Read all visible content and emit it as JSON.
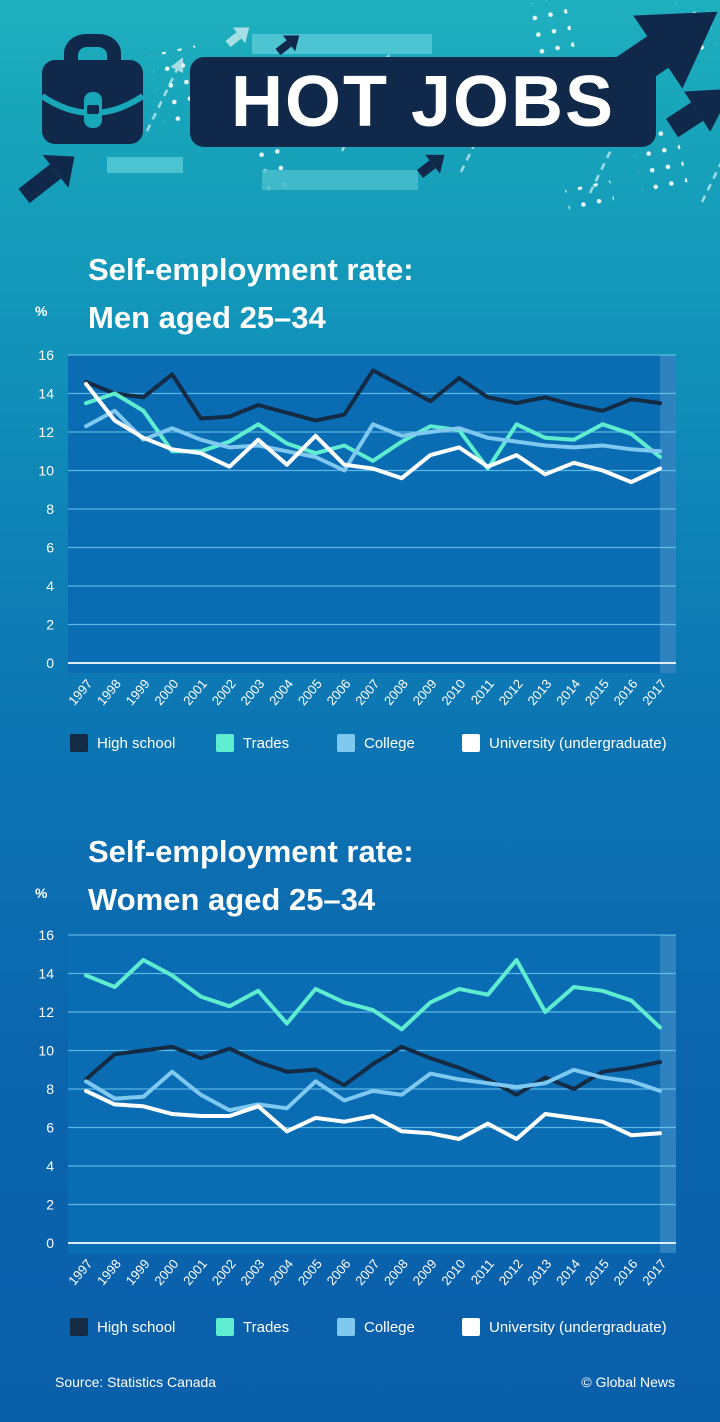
{
  "header": {
    "title": "HOT JOBS"
  },
  "colors": {
    "navy": "#10294a",
    "plot_bg": "#0a6db4",
    "grid": "rgba(125,214,242,0.7)",
    "axis": "rgba(240,250,255,0.9)",
    "strip_teal": "#52c6d3",
    "light_teal": "#a6dee5",
    "high_school": "#132b45",
    "trades": "#5fedd1",
    "college": "#7fc8f0",
    "university": "#ffffff"
  },
  "charts": [
    {
      "title_line1": "Self-employment rate:",
      "title_line2": "Men aged 25–34",
      "unit_label": "%"
    },
    {
      "title_line1": "Self-employment rate:",
      "title_line2": "Women aged 25–34",
      "unit_label": "%"
    }
  ],
  "legend": {
    "items": [
      {
        "label": "High school",
        "color": "#132b45"
      },
      {
        "label": "Trades",
        "color": "#5fedd1"
      },
      {
        "label": "College",
        "color": "#7fc8f0"
      },
      {
        "label": "University (undergraduate)",
        "color": "#ffffff"
      }
    ]
  },
  "footer": {
    "source": "Source: Statistics Canada",
    "credit": "© Global News"
  },
  "chart_data": [
    {
      "type": "line",
      "title": "Self-employment rate: Men aged 25–34",
      "ylabel": "%",
      "ylim": [
        0,
        16
      ],
      "ytick_step": 2,
      "grid": true,
      "legend_position": "bottom",
      "x": [
        1997,
        1998,
        1999,
        2000,
        2001,
        2002,
        2003,
        2004,
        2005,
        2006,
        2007,
        2008,
        2009,
        2010,
        2011,
        2012,
        2013,
        2014,
        2015,
        2016,
        2017
      ],
      "series": [
        {
          "name": "High school",
          "color": "#132b45",
          "values": [
            14.6,
            14.0,
            13.8,
            15.0,
            12.7,
            12.8,
            13.4,
            13.0,
            12.6,
            12.9,
            15.2,
            14.4,
            13.6,
            14.8,
            13.8,
            13.5,
            13.8,
            13.4,
            13.1,
            13.7,
            13.5
          ]
        },
        {
          "name": "Trades",
          "color": "#5fedd1",
          "values": [
            13.5,
            14.0,
            13.1,
            11.0,
            11.0,
            11.5,
            12.4,
            11.4,
            10.9,
            11.3,
            10.5,
            11.5,
            12.3,
            12.1,
            10.1,
            12.4,
            11.7,
            11.6,
            12.4,
            11.9,
            10.7
          ]
        },
        {
          "name": "College",
          "color": "#7fc8f0",
          "values": [
            12.3,
            13.1,
            11.6,
            12.2,
            11.6,
            11.2,
            11.3,
            11.0,
            10.7,
            10.0,
            12.4,
            11.8,
            12.0,
            12.2,
            11.7,
            11.5,
            11.3,
            11.2,
            11.3,
            11.1,
            11.0
          ]
        },
        {
          "name": "University (undergraduate)",
          "color": "#ffffff",
          "values": [
            14.5,
            12.6,
            11.7,
            11.1,
            10.9,
            10.2,
            11.6,
            10.3,
            11.8,
            10.3,
            10.1,
            9.6,
            10.8,
            11.2,
            10.2,
            10.8,
            9.8,
            10.4,
            10.0,
            9.4,
            10.1
          ]
        }
      ]
    },
    {
      "type": "line",
      "title": "Self-employment rate: Women aged 25–34",
      "ylabel": "%",
      "ylim": [
        0,
        16
      ],
      "ytick_step": 2,
      "grid": true,
      "legend_position": "bottom",
      "x": [
        1997,
        1998,
        1999,
        2000,
        2001,
        2002,
        2003,
        2004,
        2005,
        2006,
        2007,
        2008,
        2009,
        2010,
        2011,
        2012,
        2013,
        2014,
        2015,
        2016,
        2017
      ],
      "series": [
        {
          "name": "High school",
          "color": "#132b45",
          "values": [
            8.5,
            9.8,
            10.0,
            10.2,
            9.6,
            10.1,
            9.4,
            8.9,
            9.0,
            8.2,
            9.3,
            10.2,
            9.6,
            9.1,
            8.5,
            7.7,
            8.6,
            8.0,
            8.9,
            9.1,
            9.4
          ]
        },
        {
          "name": "Trades",
          "color": "#5fedd1",
          "values": [
            13.9,
            13.3,
            14.7,
            13.9,
            12.8,
            12.3,
            13.1,
            11.4,
            13.2,
            12.5,
            12.1,
            11.1,
            12.5,
            13.2,
            12.9,
            14.7,
            12.0,
            13.3,
            13.1,
            12.6,
            11.2
          ]
        },
        {
          "name": "College",
          "color": "#7fc8f0",
          "values": [
            8.4,
            7.5,
            7.6,
            8.9,
            7.7,
            6.9,
            7.2,
            7.0,
            8.4,
            7.4,
            7.9,
            7.7,
            8.8,
            8.5,
            8.3,
            8.1,
            8.3,
            9.0,
            8.6,
            8.4,
            7.9
          ]
        },
        {
          "name": "University (undergraduate)",
          "color": "#ffffff",
          "values": [
            7.9,
            7.2,
            7.1,
            6.7,
            6.6,
            6.6,
            7.1,
            5.8,
            6.5,
            6.3,
            6.6,
            5.8,
            5.7,
            5.4,
            6.2,
            5.4,
            6.7,
            6.5,
            6.3,
            5.6,
            5.7
          ]
        }
      ]
    }
  ]
}
